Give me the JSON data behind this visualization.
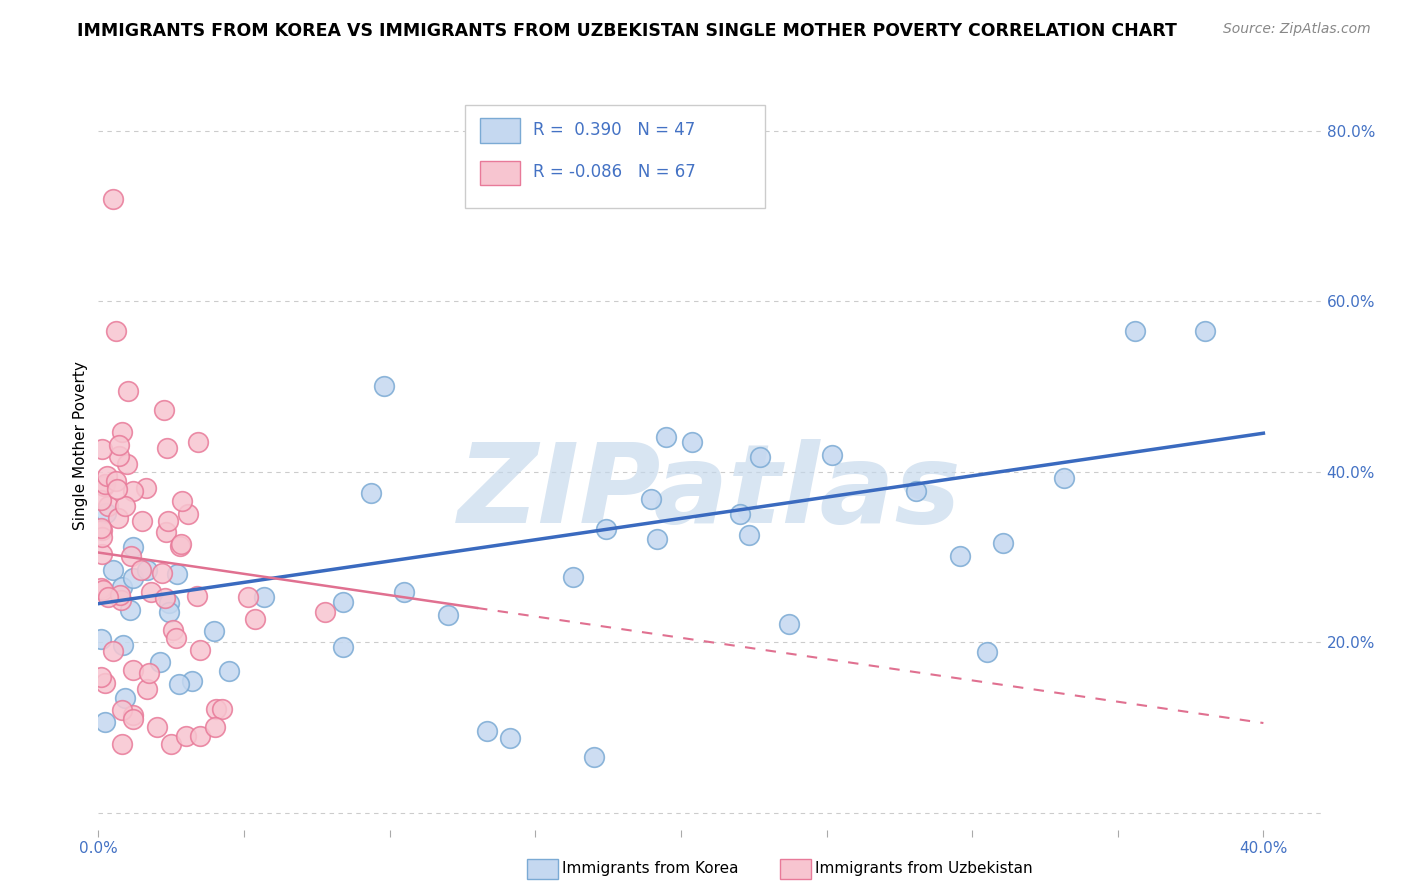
{
  "title": "IMMIGRANTS FROM KOREA VS IMMIGRANTS FROM UZBEKISTAN SINGLE MOTHER POVERTY CORRELATION CHART",
  "source": "Source: ZipAtlas.com",
  "ylabel": "Single Mother Poverty",
  "xlim": [
    0.0,
    0.42
  ],
  "ylim": [
    -0.02,
    0.88
  ],
  "ytick_vals": [
    0.0,
    0.2,
    0.4,
    0.6,
    0.8
  ],
  "xtick_vals": [
    0.0,
    0.05,
    0.1,
    0.15,
    0.2,
    0.25,
    0.3,
    0.35,
    0.4
  ],
  "grid_color": "#cccccc",
  "background_color": "#ffffff",
  "korea_face_color": "#c5d8f0",
  "korea_edge_color": "#7baad4",
  "uzbekistan_face_color": "#f7c5d0",
  "uzbekistan_edge_color": "#e87a99",
  "korea_line_color": "#3a6abf",
  "uzbekistan_line_color": "#e07090",
  "R_korea": 0.39,
  "N_korea": 47,
  "R_uzbekistan": -0.086,
  "N_uzbekistan": 67,
  "watermark": "ZIPatlas",
  "watermark_color_r": 195,
  "watermark_color_g": 215,
  "watermark_color_b": 235,
  "korea_line_y0": 0.245,
  "korea_line_y1": 0.445,
  "uzbek_line_y0": 0.305,
  "uzbek_line_y1": 0.105,
  "uzbek_line_x_solid_end": 0.13,
  "title_fontsize": 12.5,
  "source_fontsize": 10,
  "tick_label_fontsize": 11,
  "axis_label_fontsize": 11,
  "legend_fontsize": 12
}
